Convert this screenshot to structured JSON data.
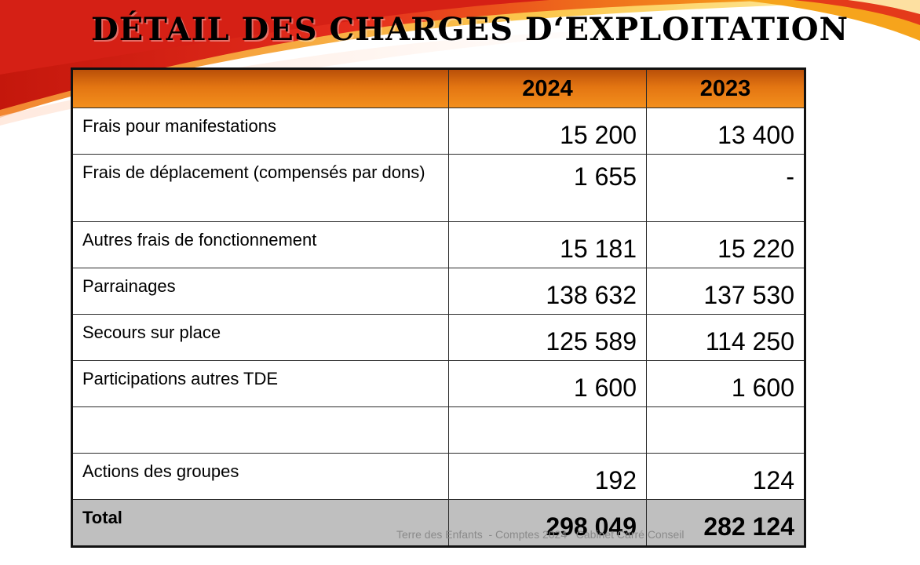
{
  "title": "Détail des charges d‘exploitation",
  "colors": {
    "header_top": "#b84e08",
    "header_bottom": "#f4901d",
    "total_bg": "#bfbfbf",
    "swoosh_red": "#e52d1d",
    "swoosh_orange": "#f7a21b"
  },
  "table": {
    "columns": [
      "",
      "2024",
      "2023"
    ],
    "rows": [
      {
        "label": "Frais pour manifestations",
        "v2024": "15 200",
        "v2023": "13 400"
      },
      {
        "label": "Frais de déplacement (compensés par dons)",
        "v2024": "1 655",
        "v2023": "-"
      },
      {
        "label": "Autres frais de fonctionnement",
        "v2024": "15 181",
        "v2023": "15 220"
      },
      {
        "label": "Parrainages",
        "v2024": "138 632",
        "v2023": "137 530"
      },
      {
        "label": "Secours sur place",
        "v2024": "125 589",
        "v2023": "114 250"
      },
      {
        "label": "Participations autres TDE",
        "v2024": "1 600",
        "v2023": "1 600"
      },
      {
        "label": "",
        "v2024": "",
        "v2023": ""
      },
      {
        "label": "Actions des groupes",
        "v2024": "192",
        "v2023": "124"
      }
    ],
    "total": {
      "label": "Total",
      "v2024": "298 049",
      "v2023": "282 124"
    }
  },
  "footer": "Terre des Enfants  - Comptes 2024   Cabinet Carré Conseil"
}
